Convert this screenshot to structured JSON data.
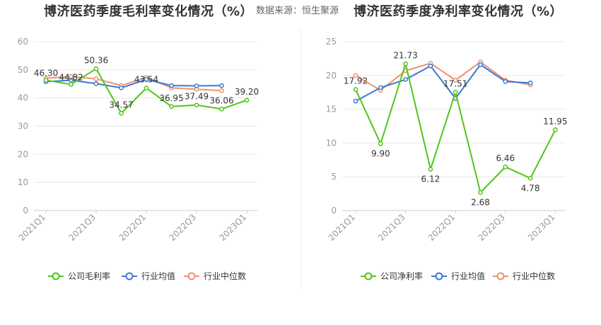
{
  "left_title": "博济医药季度毛利率变化情况（%）",
  "right_title": "博济医药季度净利率变化情况（%）",
  "source": "数据来源：恒生聚源",
  "colors": {
    "company": "#52c41a",
    "avg": "#3a78d8",
    "median": "#f0916b",
    "grid": "#e8e8e8",
    "axis": "#cccccc"
  },
  "chart_data": [
    {
      "type": "line",
      "title": "博济医药季度毛利率变化情况（%）",
      "categories": [
        "2021Q1",
        "2021Q2",
        "2021Q3",
        "2021Q4",
        "2022Q1",
        "2022Q2",
        "2022Q3",
        "2022Q4",
        "2023Q1"
      ],
      "tick_labels": [
        "2021Q1",
        "2021Q3",
        "2022Q1",
        "2022Q3",
        "2023Q1"
      ],
      "ylim": [
        0,
        60
      ],
      "yticks": [
        0,
        10,
        20,
        30,
        40,
        50,
        60
      ],
      "series": [
        {
          "name": "公司毛利率",
          "values": [
            46.3,
            44.82,
            50.36,
            34.57,
            43.54,
            36.95,
            37.49,
            36.06,
            39.2
          ],
          "labels": [
            "46.30",
            "44.82",
            "50.36",
            "34.57",
            "43.54",
            "36.95",
            "37.49",
            "36.06",
            "39.20"
          ]
        },
        {
          "name": "行业均值",
          "values": [
            45.8,
            46.3,
            45.1,
            43.6,
            46.6,
            44.4,
            44.3,
            44.4,
            null
          ]
        },
        {
          "name": "行业中位数",
          "values": [
            47.0,
            47.6,
            46.8,
            44.4,
            47.3,
            43.6,
            43.1,
            42.6,
            null
          ]
        }
      ],
      "legend": [
        "公司毛利率",
        "行业均值",
        "行业中位数"
      ]
    },
    {
      "type": "line",
      "title": "博济医药季度净利率变化情况（%）",
      "categories": [
        "2021Q1",
        "2021Q2",
        "2021Q3",
        "2021Q4",
        "2022Q1",
        "2022Q2",
        "2022Q3",
        "2022Q4",
        "2023Q1"
      ],
      "tick_labels": [
        "2021Q1",
        "2021Q3",
        "2022Q1",
        "2022Q3",
        "2023Q1"
      ],
      "ylim": [
        0,
        25
      ],
      "yticks": [
        0,
        5,
        10,
        15,
        20,
        25
      ],
      "series": [
        {
          "name": "公司净利率",
          "values": [
            17.92,
            9.9,
            21.73,
            6.12,
            17.51,
            2.68,
            6.46,
            4.78,
            11.95
          ],
          "labels": [
            "17.92",
            "9.90",
            "21.73",
            "6.12",
            "17.51",
            "2.68",
            "6.46",
            "4.78",
            "11.95"
          ]
        },
        {
          "name": "行业均值",
          "values": [
            16.2,
            18.2,
            19.4,
            21.4,
            16.6,
            21.6,
            19.1,
            18.9,
            null
          ]
        },
        {
          "name": "行业中位数",
          "values": [
            20.0,
            17.8,
            20.7,
            21.8,
            19.3,
            22.0,
            19.3,
            18.6,
            null
          ]
        }
      ],
      "legend": [
        "公司净利率",
        "行业均值",
        "行业中位数"
      ]
    }
  ]
}
